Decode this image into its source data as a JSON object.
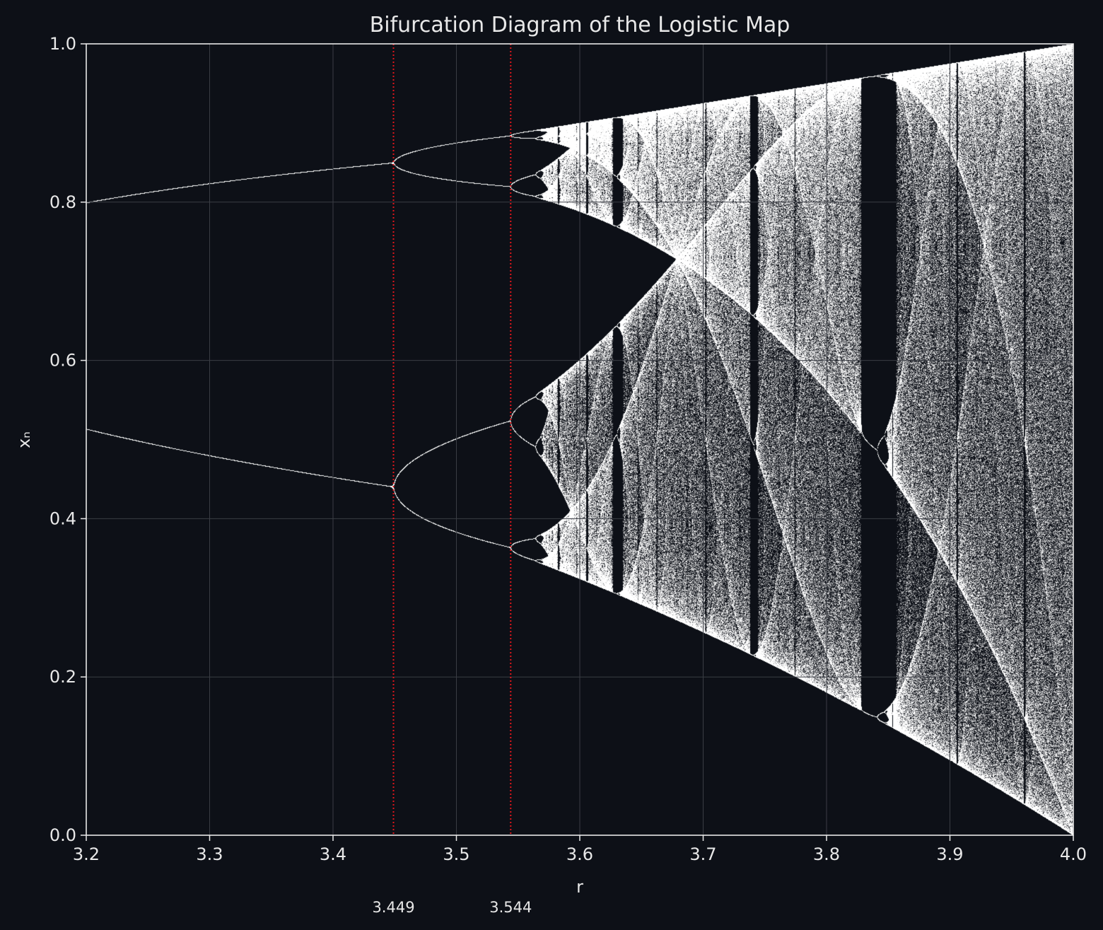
{
  "chart_data": {
    "type": "scatter",
    "title": "Bifurcation Diagram of the Logistic Map",
    "xlabel": "r",
    "ylabel": "xₙ",
    "xlim": [
      3.2,
      4.0
    ],
    "ylim": [
      0.0,
      1.0
    ],
    "xticks": [
      {
        "value": 3.2,
        "label": "3.2"
      },
      {
        "value": 3.3,
        "label": "3.3"
      },
      {
        "value": 3.4,
        "label": "3.4"
      },
      {
        "value": 3.5,
        "label": "3.5"
      },
      {
        "value": 3.6,
        "label": "3.6"
      },
      {
        "value": 3.7,
        "label": "3.7"
      },
      {
        "value": 3.8,
        "label": "3.8"
      },
      {
        "value": 3.9,
        "label": "3.9"
      },
      {
        "value": 4.0,
        "label": "4.0"
      }
    ],
    "yticks": [
      {
        "value": 0.0,
        "label": "0.0"
      },
      {
        "value": 0.2,
        "label": "0.2"
      },
      {
        "value": 0.4,
        "label": "0.4"
      },
      {
        "value": 0.6,
        "label": "0.6"
      },
      {
        "value": 0.8,
        "label": "0.8"
      },
      {
        "value": 1.0,
        "label": "1.0"
      }
    ],
    "grid": true,
    "series": [
      {
        "model": "x_{n+1} = r·x_n·(1 − x_n)",
        "r_range": [
          3.2,
          4.0
        ],
        "point_color": "#ffffff"
      }
    ],
    "annotations": [
      {
        "type": "vline",
        "x": 3.449,
        "label": "3.449",
        "color": "#e0161b",
        "style": "dotted"
      },
      {
        "type": "vline",
        "x": 3.544,
        "label": "3.544",
        "color": "#e0161b",
        "style": "dotted"
      }
    ]
  },
  "colors": {
    "background": "#0d1017",
    "axis": "#e8e8e8",
    "grid": "#3a3d44",
    "points": "#ffffff",
    "marker_lines": "#e0161b"
  }
}
